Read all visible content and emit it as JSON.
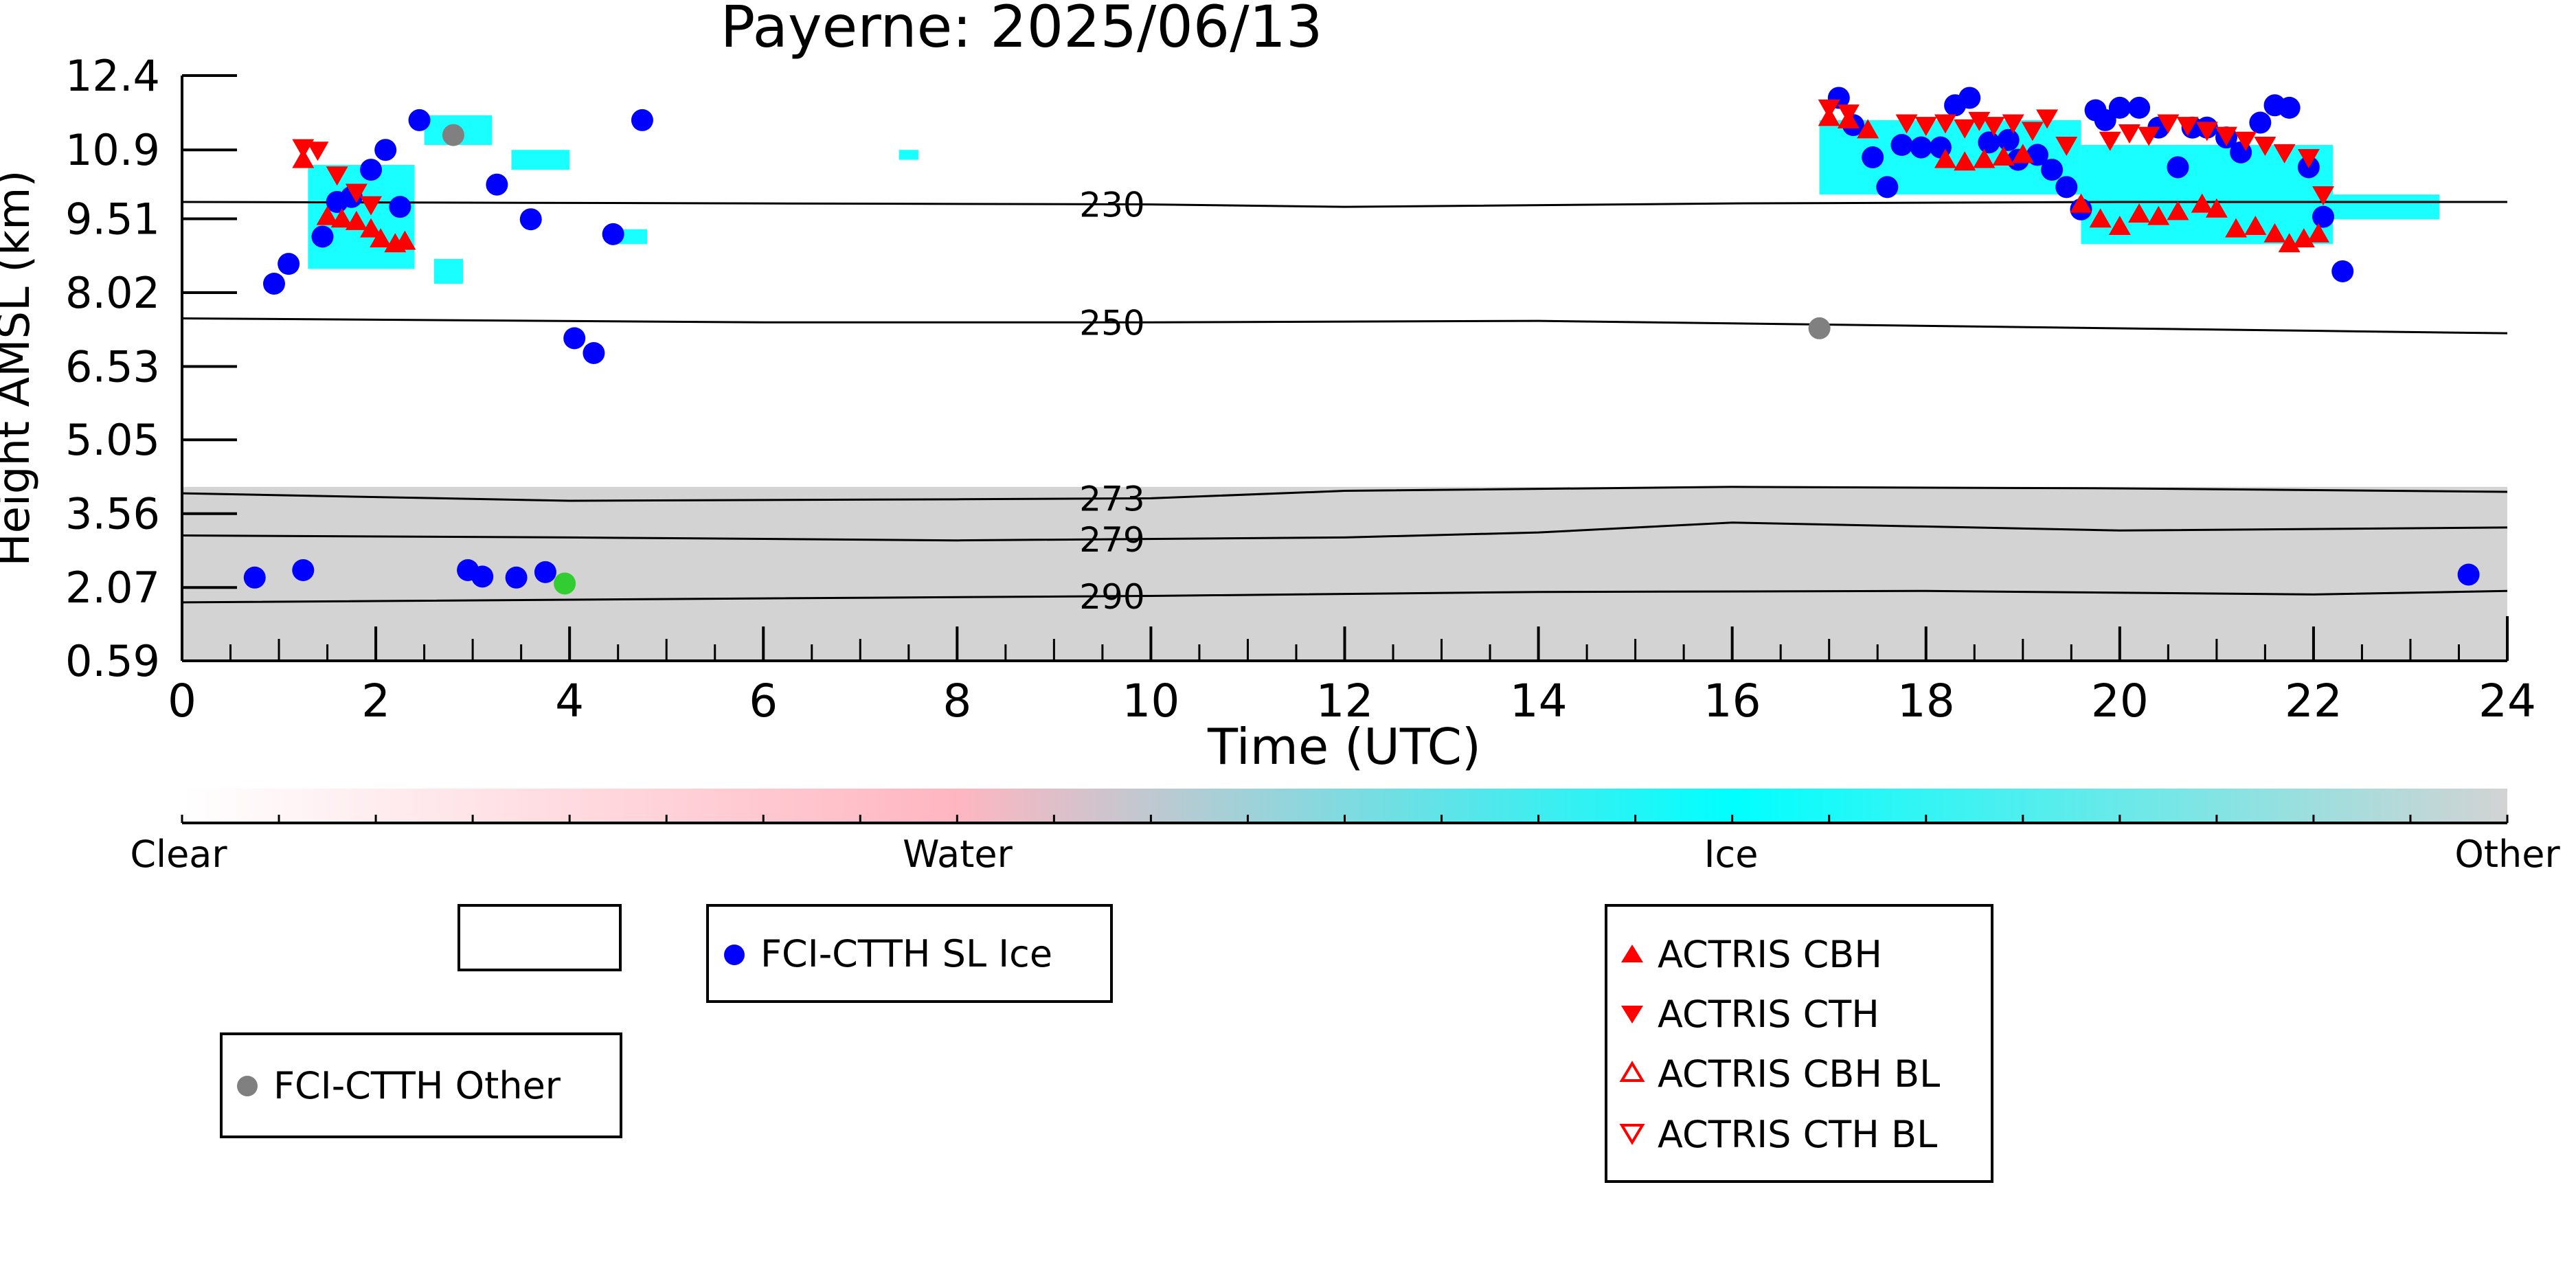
{
  "chart_data": {
    "type": "scatter",
    "title": "Payerne: 2025/06/13",
    "xlabel": "Time (UTC)",
    "ylabel": "Height AMSL (km)",
    "xlim": [
      0,
      24
    ],
    "ylim": [
      0.59,
      12.4
    ],
    "x_ticks": [
      "0",
      "2",
      "4",
      "6",
      "8",
      "10",
      "12",
      "14",
      "16",
      "18",
      "20",
      "22",
      "24"
    ],
    "y_ticks": [
      "0.59",
      "2.07",
      "3.56",
      "5.05",
      "6.53",
      "8.02",
      "9.51",
      "10.9",
      "12.4"
    ],
    "grid": false,
    "contours": [
      {
        "label": "230",
        "points": [
          [
            0,
            9.85
          ],
          [
            6,
            9.82
          ],
          [
            10,
            9.8
          ],
          [
            12,
            9.75
          ],
          [
            16,
            9.82
          ],
          [
            20,
            9.85
          ],
          [
            24,
            9.85
          ]
        ]
      },
      {
        "label": "250",
        "points": [
          [
            0,
            7.5
          ],
          [
            6,
            7.42
          ],
          [
            10,
            7.42
          ],
          [
            14,
            7.45
          ],
          [
            18,
            7.35
          ],
          [
            22,
            7.25
          ],
          [
            24,
            7.2
          ]
        ]
      },
      {
        "label": "273",
        "points": [
          [
            0,
            3.97
          ],
          [
            4,
            3.82
          ],
          [
            8,
            3.85
          ],
          [
            10,
            3.87
          ],
          [
            12,
            4.02
          ],
          [
            16,
            4.1
          ],
          [
            20,
            4.07
          ],
          [
            24,
            4.0
          ]
        ]
      },
      {
        "label": "279",
        "points": [
          [
            0,
            3.12
          ],
          [
            4,
            3.08
          ],
          [
            8,
            3.02
          ],
          [
            12,
            3.08
          ],
          [
            14,
            3.18
          ],
          [
            16,
            3.38
          ],
          [
            20,
            3.22
          ],
          [
            24,
            3.28
          ]
        ]
      },
      {
        "label": "290",
        "points": [
          [
            0,
            1.77
          ],
          [
            6,
            1.85
          ],
          [
            10,
            1.9
          ],
          [
            14,
            1.98
          ],
          [
            18,
            2.0
          ],
          [
            22,
            1.93
          ],
          [
            24,
            2.0
          ]
        ]
      }
    ],
    "background_layer": {
      "label": "Other",
      "x": [
        0,
        24
      ],
      "y": [
        0.59,
        4.1
      ]
    },
    "ice_patches": [
      {
        "x": [
          1.3,
          2.4
        ],
        "y": [
          8.5,
          10.6
        ]
      },
      {
        "x": [
          2.5,
          3.2
        ],
        "y": [
          11.0,
          11.6
        ]
      },
      {
        "x": [
          2.6,
          2.9
        ],
        "y": [
          8.2,
          8.7
        ]
      },
      {
        "x": [
          3.4,
          4.0
        ],
        "y": [
          10.5,
          10.9
        ]
      },
      {
        "x": [
          4.5,
          4.8
        ],
        "y": [
          9.0,
          9.3
        ]
      },
      {
        "x": [
          7.4,
          7.6
        ],
        "y": [
          10.7,
          10.9
        ]
      },
      {
        "x": [
          16.9,
          19.6
        ],
        "y": [
          10.0,
          11.5
        ]
      },
      {
        "x": [
          19.6,
          22.2
        ],
        "y": [
          9.0,
          11.0
        ]
      },
      {
        "x": [
          22.2,
          23.3
        ],
        "y": [
          9.5,
          10.0
        ]
      }
    ],
    "colorbar": {
      "labels": [
        "Clear",
        "Water",
        "Ice",
        "Other"
      ],
      "colors": [
        "#ffffff",
        "#ffb6c1",
        "#00ffff",
        "#d3d3d3"
      ]
    },
    "series": [
      {
        "name": "FCI-CTTH SL Ice",
        "color": "#0000ff",
        "marker": "circle",
        "points": [
          [
            0.95,
            8.2
          ],
          [
            1.1,
            8.6
          ],
          [
            1.45,
            9.15
          ],
          [
            1.6,
            9.85
          ],
          [
            1.75,
            9.95
          ],
          [
            1.95,
            10.5
          ],
          [
            2.1,
            10.9
          ],
          [
            2.25,
            9.75
          ],
          [
            2.45,
            11.5
          ],
          [
            3.25,
            10.2
          ],
          [
            3.6,
            9.5
          ],
          [
            4.05,
            7.1
          ],
          [
            4.25,
            6.8
          ],
          [
            4.45,
            9.2
          ],
          [
            4.75,
            11.5
          ],
          [
            0.75,
            2.27
          ],
          [
            1.25,
            2.42
          ],
          [
            2.95,
            2.42
          ],
          [
            3.1,
            2.29
          ],
          [
            3.45,
            2.27
          ],
          [
            3.75,
            2.38
          ],
          [
            17.1,
            11.95
          ],
          [
            17.25,
            11.4
          ],
          [
            17.45,
            10.75
          ],
          [
            17.6,
            10.15
          ],
          [
            17.75,
            11.0
          ],
          [
            17.95,
            10.95
          ],
          [
            18.15,
            10.95
          ],
          [
            18.3,
            11.8
          ],
          [
            18.45,
            11.95
          ],
          [
            18.65,
            11.05
          ],
          [
            18.85,
            11.1
          ],
          [
            18.95,
            10.7
          ],
          [
            19.15,
            10.8
          ],
          [
            19.3,
            10.5
          ],
          [
            19.45,
            10.15
          ],
          [
            19.6,
            9.7
          ],
          [
            19.75,
            11.7
          ],
          [
            19.85,
            11.5
          ],
          [
            20.0,
            11.75
          ],
          [
            20.2,
            11.75
          ],
          [
            20.4,
            11.35
          ],
          [
            20.6,
            10.55
          ],
          [
            20.75,
            11.35
          ],
          [
            20.9,
            11.35
          ],
          [
            21.1,
            11.15
          ],
          [
            21.25,
            10.85
          ],
          [
            21.45,
            11.45
          ],
          [
            21.6,
            11.8
          ],
          [
            21.75,
            11.75
          ],
          [
            21.95,
            10.55
          ],
          [
            22.1,
            9.55
          ],
          [
            22.3,
            8.45
          ],
          [
            23.6,
            2.33
          ]
        ]
      },
      {
        "name": "FCI-CTTH Other",
        "color": "#808080",
        "marker": "circle",
        "points": [
          [
            2.8,
            11.2
          ],
          [
            16.9,
            7.3
          ]
        ]
      },
      {
        "name": "",
        "color": "#32cd32",
        "marker": "circle",
        "points": [
          [
            3.95,
            2.15
          ]
        ]
      },
      {
        "name": "ACTRIS CBH",
        "color": "#ff0000",
        "marker": "triangle-up",
        "points": [
          [
            1.5,
            9.55
          ],
          [
            1.65,
            9.5
          ],
          [
            1.8,
            9.45
          ],
          [
            1.95,
            9.3
          ],
          [
            2.05,
            9.1
          ],
          [
            2.2,
            9.0
          ],
          [
            2.3,
            9.05
          ],
          [
            1.25,
            10.7
          ],
          [
            17.0,
            11.55
          ],
          [
            17.2,
            11.5
          ],
          [
            17.4,
            11.3
          ],
          [
            18.2,
            10.7
          ],
          [
            18.4,
            10.65
          ],
          [
            18.6,
            10.7
          ],
          [
            18.8,
            10.75
          ],
          [
            19.0,
            10.8
          ],
          [
            19.6,
            9.8
          ],
          [
            19.8,
            9.5
          ],
          [
            20.0,
            9.35
          ],
          [
            20.2,
            9.6
          ],
          [
            20.4,
            9.55
          ],
          [
            20.6,
            9.65
          ],
          [
            20.85,
            9.8
          ],
          [
            21.0,
            9.7
          ],
          [
            21.2,
            9.3
          ],
          [
            21.4,
            9.35
          ],
          [
            21.6,
            9.2
          ],
          [
            21.75,
            9.0
          ],
          [
            21.9,
            9.1
          ],
          [
            22.05,
            9.2
          ]
        ]
      },
      {
        "name": "ACTRIS CTH",
        "color": "#ff0000",
        "marker": "triangle-down",
        "points": [
          [
            1.25,
            10.95
          ],
          [
            1.4,
            10.9
          ],
          [
            1.6,
            10.4
          ],
          [
            1.8,
            10.05
          ],
          [
            1.95,
            9.8
          ],
          [
            17.0,
            11.75
          ],
          [
            17.2,
            11.65
          ],
          [
            17.8,
            11.45
          ],
          [
            18.0,
            11.4
          ],
          [
            18.2,
            11.45
          ],
          [
            18.4,
            11.35
          ],
          [
            18.55,
            11.5
          ],
          [
            18.7,
            11.4
          ],
          [
            18.9,
            11.45
          ],
          [
            19.1,
            11.3
          ],
          [
            19.25,
            11.55
          ],
          [
            19.45,
            11.0
          ],
          [
            19.9,
            11.1
          ],
          [
            20.1,
            11.25
          ],
          [
            20.3,
            11.2
          ],
          [
            20.5,
            11.45
          ],
          [
            20.7,
            11.4
          ],
          [
            20.9,
            11.3
          ],
          [
            21.1,
            11.2
          ],
          [
            21.3,
            11.1
          ],
          [
            21.5,
            11.0
          ],
          [
            21.7,
            10.85
          ],
          [
            21.95,
            10.75
          ],
          [
            22.1,
            10.0
          ]
        ]
      },
      {
        "name": "ACTRIS CBH BL",
        "color": "#ff0000",
        "marker": "triangle-up-open",
        "points": []
      },
      {
        "name": "ACTRIS CTH BL",
        "color": "#ff0000",
        "marker": "triangle-down-open",
        "points": []
      }
    ]
  }
}
